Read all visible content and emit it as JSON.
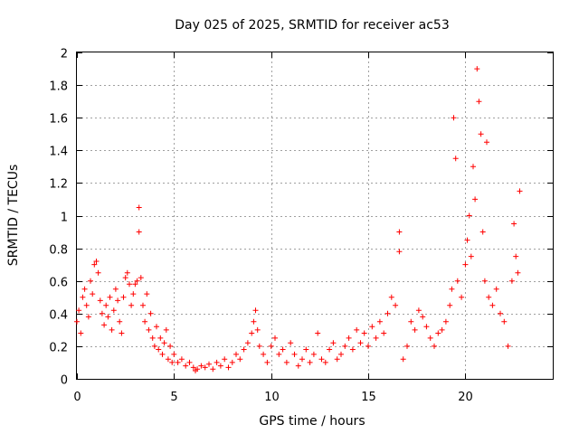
{
  "chart_data": {
    "type": "scatter",
    "title": "Day 025 of 2025, SRMTID for receiver ac53",
    "xlabel": "GPS time / hours",
    "ylabel": "SRMTID / TECUs",
    "xlim": [
      0,
      24.5
    ],
    "ylim": [
      0,
      2
    ],
    "x_ticks": [
      0,
      5,
      10,
      15,
      20
    ],
    "x_tick_labels": [
      "0",
      "5",
      "10",
      "15",
      "20"
    ],
    "y_ticks": [
      0,
      0.2,
      0.4,
      0.6,
      0.8,
      1,
      1.2,
      1.4,
      1.6,
      1.8,
      2
    ],
    "y_tick_labels": [
      "0",
      "0.2",
      "0.4",
      "0.6",
      "0.8",
      "1",
      "1.2",
      "1.4",
      "1.6",
      "1.8",
      "2"
    ],
    "grid": true,
    "marker": "+",
    "series_color": "#ff0000",
    "series": [
      {
        "name": "ac53",
        "x": [
          0.0,
          0.1,
          0.2,
          0.3,
          0.4,
          0.5,
          0.6,
          0.7,
          0.8,
          0.9,
          1.0,
          1.1,
          1.2,
          1.3,
          1.4,
          1.5,
          1.6,
          1.7,
          1.8,
          1.9,
          2.0,
          2.1,
          2.2,
          2.3,
          2.4,
          2.5,
          2.6,
          2.7,
          2.8,
          2.9,
          3.0,
          3.1,
          3.2,
          3.2,
          3.3,
          3.4,
          3.5,
          3.6,
          3.7,
          3.8,
          3.9,
          4.0,
          4.1,
          4.2,
          4.3,
          4.4,
          4.5,
          4.6,
          4.7,
          4.8,
          4.9,
          5.0,
          5.2,
          5.4,
          5.6,
          5.8,
          6.0,
          6.1,
          6.2,
          6.4,
          6.6,
          6.8,
          7.0,
          7.2,
          7.4,
          7.6,
          7.8,
          8.0,
          8.2,
          8.4,
          8.6,
          8.8,
          9.0,
          9.1,
          9.2,
          9.3,
          9.4,
          9.6,
          9.8,
          10.0,
          10.2,
          10.4,
          10.6,
          10.8,
          11.0,
          11.2,
          11.4,
          11.6,
          11.8,
          12.0,
          12.2,
          12.4,
          12.6,
          12.8,
          13.0,
          13.2,
          13.4,
          13.6,
          13.8,
          14.0,
          14.2,
          14.4,
          14.6,
          14.8,
          15.0,
          15.2,
          15.4,
          15.6,
          15.8,
          16.0,
          16.2,
          16.4,
          16.6,
          16.6,
          16.8,
          17.0,
          17.2,
          17.4,
          17.6,
          17.8,
          18.0,
          18.2,
          18.4,
          18.6,
          18.8,
          19.0,
          19.2,
          19.3,
          19.4,
          19.5,
          19.6,
          19.8,
          20.0,
          20.1,
          20.2,
          20.3,
          20.4,
          20.5,
          20.6,
          20.7,
          20.8,
          20.9,
          21.0,
          21.1,
          21.2,
          21.4,
          21.6,
          21.8,
          22.0,
          22.2,
          22.4,
          22.5,
          22.6,
          22.7,
          22.8
        ],
        "y": [
          0.35,
          0.42,
          0.28,
          0.5,
          0.55,
          0.45,
          0.38,
          0.6,
          0.52,
          0.7,
          0.72,
          0.65,
          0.48,
          0.4,
          0.33,
          0.45,
          0.38,
          0.5,
          0.3,
          0.42,
          0.55,
          0.48,
          0.35,
          0.28,
          0.5,
          0.62,
          0.65,
          0.58,
          0.45,
          0.52,
          0.58,
          0.6,
          1.05,
          0.9,
          0.62,
          0.45,
          0.35,
          0.52,
          0.3,
          0.4,
          0.25,
          0.2,
          0.32,
          0.18,
          0.25,
          0.15,
          0.22,
          0.3,
          0.12,
          0.2,
          0.1,
          0.15,
          0.1,
          0.12,
          0.08,
          0.1,
          0.07,
          0.05,
          0.06,
          0.08,
          0.07,
          0.09,
          0.06,
          0.1,
          0.08,
          0.12,
          0.07,
          0.1,
          0.15,
          0.12,
          0.18,
          0.22,
          0.28,
          0.35,
          0.42,
          0.3,
          0.2,
          0.15,
          0.1,
          0.2,
          0.25,
          0.15,
          0.18,
          0.1,
          0.22,
          0.15,
          0.08,
          0.12,
          0.18,
          0.1,
          0.15,
          0.28,
          0.12,
          0.1,
          0.18,
          0.22,
          0.12,
          0.15,
          0.2,
          0.25,
          0.18,
          0.3,
          0.22,
          0.28,
          0.2,
          0.32,
          0.25,
          0.35,
          0.28,
          0.4,
          0.5,
          0.45,
          0.9,
          0.78,
          0.12,
          0.2,
          0.35,
          0.3,
          0.42,
          0.38,
          0.32,
          0.25,
          0.2,
          0.28,
          0.3,
          0.35,
          0.45,
          0.55,
          1.6,
          1.35,
          0.6,
          0.5,
          0.7,
          0.85,
          1.0,
          0.75,
          1.3,
          1.1,
          1.9,
          1.7,
          1.5,
          0.9,
          0.6,
          1.45,
          0.5,
          0.45,
          0.55,
          0.4,
          0.35,
          0.2,
          0.6,
          0.95,
          0.75,
          0.65,
          1.15
        ]
      }
    ]
  }
}
